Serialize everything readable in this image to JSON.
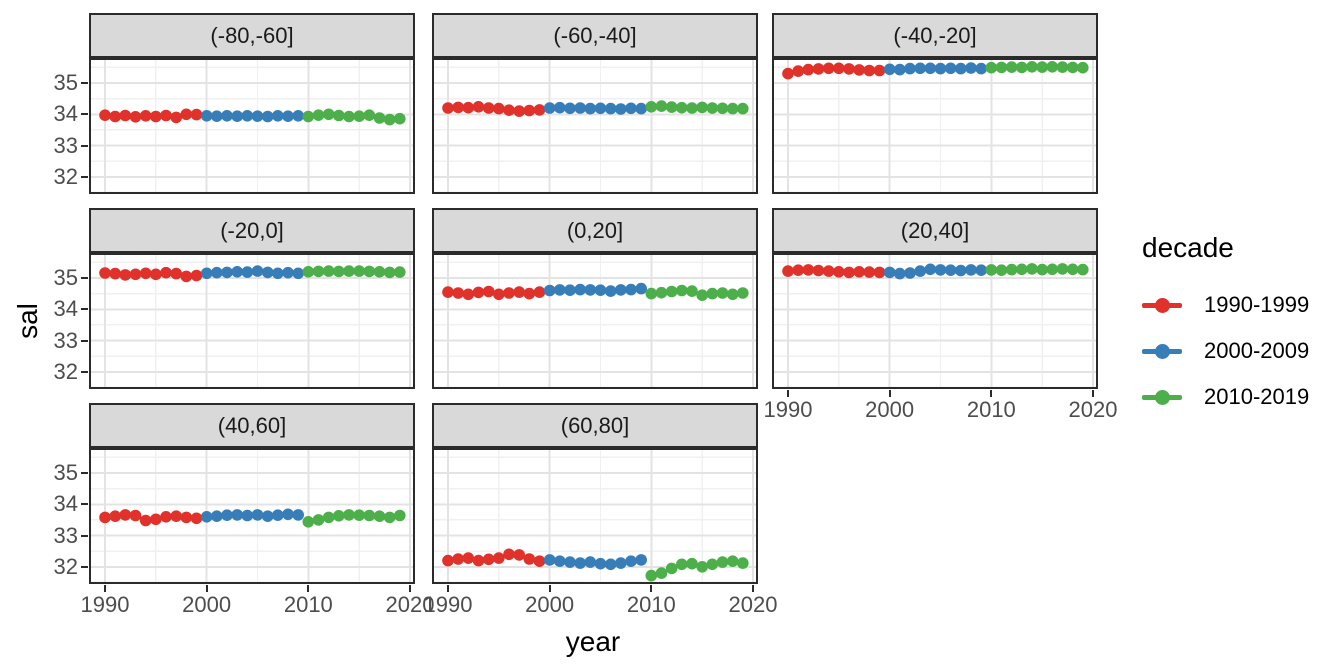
{
  "figure": {
    "y_axis_title": "sal",
    "x_axis_title": "year",
    "y_ticks": [
      "35",
      "34",
      "33",
      "32"
    ],
    "x_ticks": [
      "1990",
      "2000",
      "2010",
      "2020"
    ]
  },
  "legend": {
    "title": "decade",
    "entries": [
      {
        "label": "1990-1999",
        "color": "#E0312A"
      },
      {
        "label": "2000-2009",
        "color": "#377EB8"
      },
      {
        "label": "2010-2019",
        "color": "#4DAF4A"
      }
    ]
  },
  "colors": {
    "strip_background": "#D9D9D9",
    "panel_border": "#2B2B2B",
    "grid_major": "#E3E3E3",
    "grid_minor": "#F0F0F0",
    "tick_text": "#4D4D4D"
  },
  "chart_data": {
    "type": "scatter",
    "title": "",
    "xlabel": "year",
    "ylabel": "sal",
    "legend_title": "decade",
    "legend_position": "right",
    "grid": true,
    "facet_layout": {
      "ncol": 3,
      "nrow": 3
    },
    "x": [
      1990,
      1991,
      1992,
      1993,
      1994,
      1995,
      1996,
      1997,
      1998,
      1999,
      2000,
      2001,
      2002,
      2003,
      2004,
      2005,
      2006,
      2007,
      2008,
      2009,
      2010,
      2011,
      2012,
      2013,
      2014,
      2015,
      2016,
      2017,
      2018,
      2019
    ],
    "x_ticks": [
      1990,
      2000,
      2010,
      2020
    ],
    "y_ticks": [
      35,
      34,
      33,
      32
    ],
    "y_minor_ticks": [
      35.5,
      34.5,
      33.5,
      32.5,
      31.5
    ],
    "x_minor_ticks": [
      1995,
      2005,
      2015
    ],
    "xlim": [
      1988.4,
      2021.6
    ],
    "ylim": [
      31.45,
      35.8
    ],
    "series": [
      {
        "name": "1990-1999",
        "color": "#E0312A",
        "year_range": [
          1990,
          1999
        ]
      },
      {
        "name": "2000-2009",
        "color": "#377EB8",
        "year_range": [
          2000,
          2009
        ]
      },
      {
        "name": "2010-2019",
        "color": "#4DAF4A",
        "year_range": [
          2010,
          2019
        ]
      }
    ],
    "facets": [
      {
        "label": "(-80,-60]",
        "values": [
          33.97,
          33.93,
          33.96,
          33.92,
          33.95,
          33.93,
          33.96,
          33.9,
          34.0,
          33.99,
          33.95,
          33.94,
          33.95,
          33.94,
          33.95,
          33.94,
          33.93,
          33.95,
          33.94,
          33.95,
          33.93,
          33.97,
          34.0,
          33.96,
          33.93,
          33.94,
          33.97,
          33.88,
          33.83,
          33.86
        ]
      },
      {
        "label": "(-60,-40]",
        "values": [
          34.2,
          34.22,
          34.21,
          34.24,
          34.2,
          34.18,
          34.13,
          34.1,
          34.12,
          34.14,
          34.2,
          34.21,
          34.19,
          34.2,
          34.18,
          34.19,
          34.18,
          34.17,
          34.19,
          34.18,
          34.24,
          34.26,
          34.23,
          34.21,
          34.2,
          34.22,
          34.2,
          34.19,
          34.18,
          34.18
        ]
      },
      {
        "label": "(-40,-20]",
        "values": [
          35.3,
          35.38,
          35.43,
          35.45,
          35.47,
          35.47,
          35.45,
          35.42,
          35.4,
          35.4,
          35.44,
          35.43,
          35.46,
          35.47,
          35.47,
          35.46,
          35.47,
          35.46,
          35.48,
          35.46,
          35.49,
          35.5,
          35.51,
          35.5,
          35.52,
          35.51,
          35.52,
          35.51,
          35.5,
          35.49
        ]
      },
      {
        "label": "(-20,0]",
        "values": [
          35.16,
          35.14,
          35.1,
          35.12,
          35.15,
          35.12,
          35.17,
          35.14,
          35.05,
          35.08,
          35.15,
          35.17,
          35.18,
          35.2,
          35.19,
          35.22,
          35.18,
          35.15,
          35.17,
          35.15,
          35.2,
          35.21,
          35.22,
          35.21,
          35.22,
          35.22,
          35.21,
          35.2,
          35.18,
          35.19
        ]
      },
      {
        "label": "(0,20]",
        "values": [
          34.55,
          34.52,
          34.48,
          34.54,
          34.57,
          34.48,
          34.52,
          34.55,
          34.5,
          34.55,
          34.6,
          34.62,
          34.61,
          34.63,
          34.62,
          34.61,
          34.58,
          34.62,
          34.63,
          34.66,
          34.5,
          34.53,
          34.57,
          34.6,
          34.58,
          34.45,
          34.5,
          34.52,
          34.48,
          34.52
        ]
      },
      {
        "label": "(20,40]",
        "values": [
          35.22,
          35.25,
          35.26,
          35.24,
          35.22,
          35.2,
          35.18,
          35.2,
          35.19,
          35.18,
          35.18,
          35.14,
          35.16,
          35.22,
          35.28,
          35.26,
          35.25,
          35.24,
          35.26,
          35.25,
          35.26,
          35.25,
          35.27,
          35.28,
          35.29,
          35.27,
          35.28,
          35.29,
          35.28,
          35.27
        ]
      },
      {
        "label": "(40,60]",
        "values": [
          33.58,
          33.62,
          33.66,
          33.64,
          33.48,
          33.52,
          33.6,
          33.62,
          33.58,
          33.55,
          33.6,
          33.62,
          33.65,
          33.66,
          33.64,
          33.66,
          33.62,
          33.65,
          33.68,
          33.66,
          33.44,
          33.5,
          33.58,
          33.63,
          33.66,
          33.65,
          33.64,
          33.62,
          33.58,
          33.64
        ]
      },
      {
        "label": "(60,80]",
        "values": [
          32.2,
          32.25,
          32.28,
          32.2,
          32.24,
          32.28,
          32.4,
          32.38,
          32.25,
          32.18,
          32.22,
          32.18,
          32.15,
          32.12,
          32.15,
          32.1,
          32.08,
          32.12,
          32.18,
          32.22,
          31.72,
          31.8,
          31.95,
          32.08,
          32.1,
          32.0,
          32.08,
          32.15,
          32.18,
          32.12
        ]
      }
    ]
  }
}
